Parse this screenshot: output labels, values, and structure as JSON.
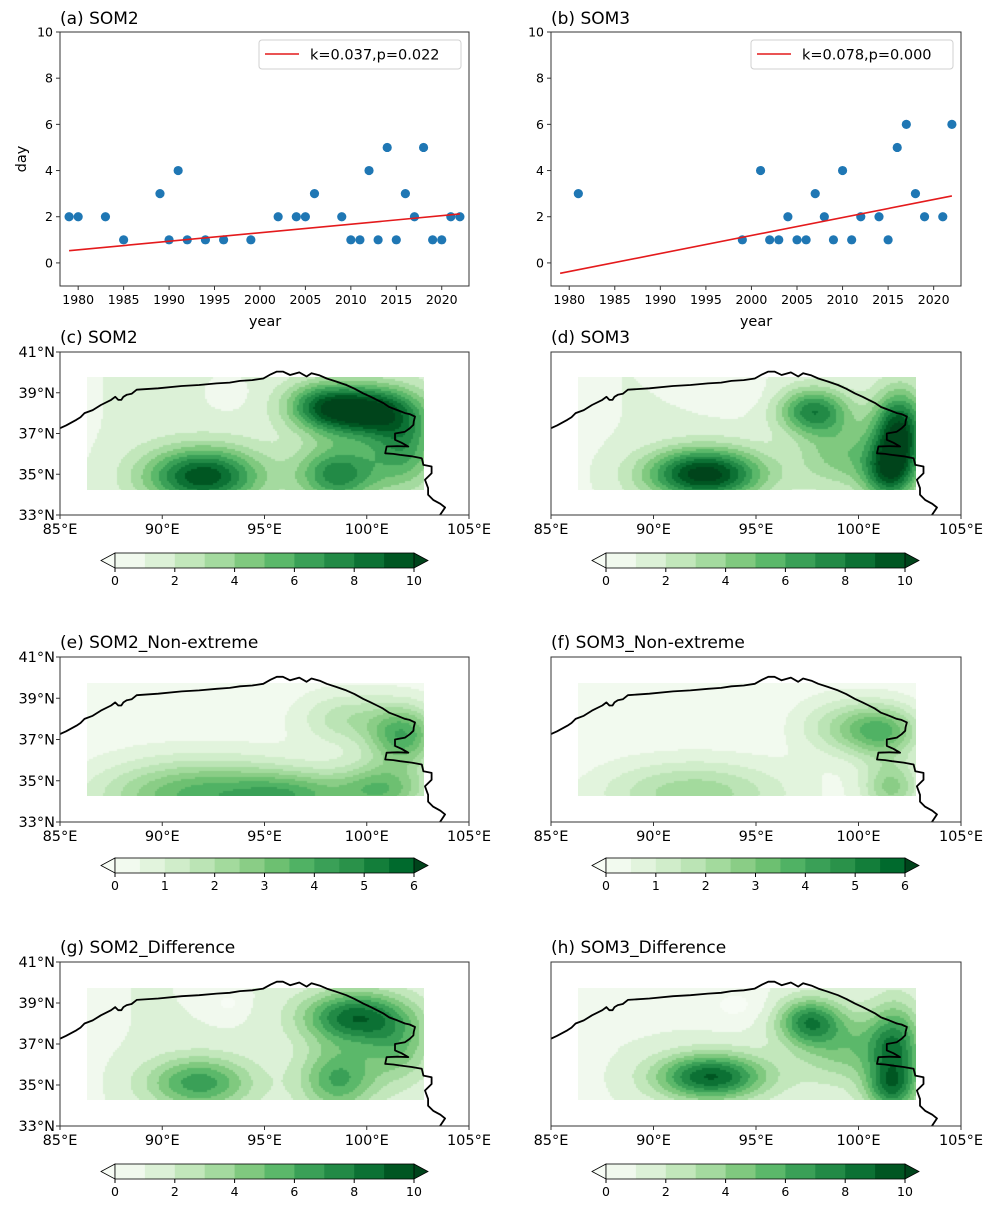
{
  "chart_data": [
    {
      "id": "a",
      "type": "scatter",
      "title": "(a) SOM2",
      "xlabel": "year",
      "ylabel": "day",
      "xlim": [
        1978,
        2023
      ],
      "ylim": [
        -1,
        10
      ],
      "xticks": [
        1980,
        1985,
        1990,
        1995,
        2000,
        2005,
        2010,
        2015,
        2020
      ],
      "yticks": [
        0,
        2,
        4,
        6,
        8,
        10
      ],
      "grid": false,
      "marker_color": "#1f77b4",
      "points": {
        "x": [
          1979,
          1980,
          1983,
          1985,
          1989,
          1990,
          1991,
          1992,
          1994,
          1996,
          1999,
          2002,
          2004,
          2005,
          2006,
          2009,
          2010,
          2011,
          2012,
          2013,
          2014,
          2015,
          2016,
          2017,
          2018,
          2019,
          2020,
          2021,
          2022
        ],
        "y": [
          2,
          2,
          2,
          1,
          3,
          1,
          4,
          1,
          1,
          1,
          1,
          2,
          2,
          2,
          3,
          2,
          1,
          1,
          4,
          1,
          5,
          1,
          3,
          2,
          5,
          1,
          1,
          2,
          2
        ]
      },
      "trend": {
        "label": "k=0.037,p=0.022",
        "color": "#e41a1c",
        "x": [
          1979,
          2022
        ],
        "y": [
          0.53,
          2.12
        ]
      },
      "legend_position": "top-right"
    },
    {
      "id": "b",
      "type": "scatter",
      "title": "(b) SOM3",
      "xlabel": "year",
      "ylabel": "",
      "xlim": [
        1978,
        2023
      ],
      "ylim": [
        -1,
        10
      ],
      "xticks": [
        1980,
        1985,
        1990,
        1995,
        2000,
        2005,
        2010,
        2015,
        2020
      ],
      "yticks": [
        0,
        2,
        4,
        6,
        8,
        10
      ],
      "grid": false,
      "marker_color": "#1f77b4",
      "points": {
        "x": [
          1981,
          1999,
          2001,
          2002,
          2003,
          2004,
          2005,
          2006,
          2007,
          2008,
          2009,
          2010,
          2011,
          2012,
          2014,
          2015,
          2016,
          2017,
          2018,
          2019,
          2021,
          2022
        ],
        "y": [
          3,
          1,
          4,
          1,
          1,
          2,
          1,
          1,
          3,
          2,
          1,
          4,
          1,
          2,
          2,
          1,
          5,
          6,
          3,
          2,
          2,
          6
        ]
      },
      "trend": {
        "label": "k=0.078,p=0.000",
        "color": "#e41a1c",
        "x": [
          1979,
          2022
        ],
        "y": [
          -0.45,
          2.9
        ]
      },
      "legend_position": "top-right"
    },
    {
      "id": "c",
      "type": "heatmap",
      "title": "(c) SOM2",
      "colorbar": "cb10",
      "blobs": [
        [
          99.8,
          38.1,
          9.5,
          1.8,
          0.9
        ],
        [
          92.0,
          34.9,
          8.6,
          2.0,
          1.0
        ],
        [
          98.6,
          35.0,
          6.5,
          1.4,
          1.0
        ],
        [
          101.8,
          36.3,
          5.0,
          1.2,
          1.4
        ],
        [
          97.6,
          38.4,
          4.0,
          1.2,
          0.8
        ]
      ],
      "base": 1.2,
      "cold_spots": [
        [
          93.2,
          39.0,
          1.2,
          0.6,
          0.5
        ]
      ]
    },
    {
      "id": "d",
      "type": "heatmap",
      "title": "(d) SOM3",
      "colorbar": "cb10",
      "blobs": [
        [
          92.5,
          35.0,
          9.8,
          2.0,
          0.9
        ],
        [
          102.0,
          37.1,
          9.0,
          0.9,
          1.4
        ],
        [
          97.8,
          38.1,
          6.5,
          1.2,
          0.8
        ],
        [
          101.5,
          35.0,
          6.5,
          0.9,
          1.0
        ],
        [
          99.2,
          36.0,
          3.5,
          1.5,
          1.2
        ]
      ],
      "base": 1.0,
      "cold_spots": [
        [
          94.0,
          39.0,
          1.0,
          1.0,
          0.6
        ]
      ]
    },
    {
      "id": "e",
      "type": "heatmap",
      "title": "(e) SOM2_Non-extreme",
      "colorbar": "cb6",
      "blobs": [
        [
          92.0,
          34.3,
          3.5,
          3.5,
          1.2
        ],
        [
          101.8,
          37.2,
          3.6,
          1.2,
          1.0
        ],
        [
          100.8,
          34.6,
          3.0,
          1.6,
          0.9
        ],
        [
          99.0,
          38.0,
          1.6,
          1.6,
          0.9
        ],
        [
          96.5,
          34.3,
          2.2,
          2.0,
          0.8
        ]
      ],
      "base": 0.2,
      "cold_spots": []
    },
    {
      "id": "f",
      "type": "heatmap",
      "title": "(f) SOM3_Non-extreme",
      "colorbar": "cb6",
      "blobs": [
        [
          101.2,
          37.4,
          3.2,
          1.3,
          0.9
        ],
        [
          92.0,
          34.4,
          2.2,
          3.2,
          1.1
        ],
        [
          101.6,
          34.7,
          2.5,
          1.0,
          0.9
        ],
        [
          99.0,
          37.6,
          1.5,
          1.5,
          1.0
        ]
      ],
      "base": 0.15,
      "cold_spots": []
    },
    {
      "id": "g",
      "type": "heatmap",
      "title": "(g) SOM2_Difference",
      "colorbar": "cb10",
      "blobs": [
        [
          99.4,
          38.3,
          7.6,
          1.8,
          0.9
        ],
        [
          91.8,
          35.1,
          5.6,
          1.8,
          0.9
        ],
        [
          98.6,
          35.3,
          5.2,
          1.3,
          1.1
        ],
        [
          101.5,
          36.8,
          3.5,
          1.2,
          1.2
        ]
      ],
      "base": 1.0,
      "cold_spots": [
        [
          93.2,
          39.0,
          1.2,
          0.6,
          0.5
        ]
      ]
    },
    {
      "id": "h",
      "type": "heatmap",
      "title": "(h) SOM3_Difference",
      "colorbar": "cb10",
      "blobs": [
        [
          92.8,
          35.4,
          8.2,
          1.9,
          0.8
        ],
        [
          97.6,
          38.1,
          6.2,
          1.1,
          0.8
        ],
        [
          101.8,
          36.8,
          6.0,
          0.9,
          1.5
        ],
        [
          99.5,
          36.8,
          3.5,
          1.8,
          1.2
        ],
        [
          101.6,
          34.8,
          5.0,
          0.9,
          0.8
        ]
      ],
      "base": 0.9,
      "cold_spots": [
        [
          94.0,
          38.9,
          1.2,
          1.0,
          0.6
        ]
      ]
    }
  ],
  "map": {
    "lon_range": [
      85,
      105
    ],
    "lat_range": [
      33,
      41
    ],
    "data_extent": {
      "lon": [
        86.3,
        102.8
      ],
      "lat": [
        34.25,
        39.75
      ]
    },
    "xticks": [
      85,
      90,
      95,
      100,
      105
    ],
    "xtick_labels": [
      "85°E",
      "90°E",
      "95°E",
      "100°E",
      "105°E"
    ],
    "yticks": [
      33,
      35,
      37,
      39,
      41
    ],
    "ytick_labels": [
      "33°N",
      "35°N",
      "37°N",
      "39°N",
      "41°N"
    ],
    "border": [
      [
        85.0,
        37.26
      ],
      [
        85.3,
        37.4
      ],
      [
        85.8,
        37.67
      ],
      [
        86.0,
        37.8
      ],
      [
        86.2,
        38.0
      ],
      [
        86.6,
        38.15
      ],
      [
        87.0,
        38.4
      ],
      [
        87.5,
        38.65
      ],
      [
        87.7,
        38.8
      ],
      [
        87.85,
        38.65
      ],
      [
        88.0,
        38.65
      ],
      [
        88.1,
        38.8
      ],
      [
        88.26,
        38.9
      ],
      [
        88.5,
        38.95
      ],
      [
        88.75,
        39.15
      ],
      [
        89.8,
        39.22
      ],
      [
        90.95,
        39.33
      ],
      [
        91.8,
        39.38
      ],
      [
        92.66,
        39.46
      ],
      [
        93.3,
        39.5
      ],
      [
        93.8,
        39.58
      ],
      [
        94.4,
        39.62
      ],
      [
        94.94,
        39.7
      ],
      [
        95.3,
        39.9
      ],
      [
        95.6,
        40.04
      ],
      [
        95.9,
        40.04
      ],
      [
        96.25,
        39.87
      ],
      [
        96.7,
        40.0
      ],
      [
        97.06,
        39.8
      ],
      [
        97.3,
        39.96
      ],
      [
        97.7,
        39.85
      ],
      [
        98.04,
        39.7
      ],
      [
        98.5,
        39.55
      ],
      [
        99.0,
        39.38
      ],
      [
        99.4,
        39.2
      ],
      [
        99.83,
        38.97
      ],
      [
        100.2,
        38.8
      ],
      [
        100.5,
        38.65
      ],
      [
        100.8,
        38.5
      ],
      [
        101.1,
        38.3
      ],
      [
        101.5,
        38.15
      ],
      [
        101.87,
        38.0
      ],
      [
        102.1,
        37.95
      ],
      [
        102.36,
        37.83
      ],
      [
        102.3,
        37.6
      ],
      [
        102.28,
        37.42
      ],
      [
        102.1,
        37.25
      ],
      [
        101.87,
        37.09
      ],
      [
        101.38,
        37.0
      ],
      [
        101.38,
        36.69
      ],
      [
        101.7,
        36.55
      ],
      [
        102.03,
        36.36
      ],
      [
        101.5,
        36.38
      ],
      [
        100.97,
        36.36
      ],
      [
        100.9,
        36.03
      ],
      [
        101.3,
        36.0
      ],
      [
        101.63,
        35.95
      ],
      [
        102.2,
        35.88
      ],
      [
        102.69,
        35.79
      ],
      [
        102.77,
        35.46
      ],
      [
        103.17,
        35.38
      ],
      [
        103.17,
        35.05
      ],
      [
        102.85,
        34.73
      ],
      [
        103.0,
        34.32
      ],
      [
        103.0,
        33.99
      ],
      [
        103.25,
        33.74
      ],
      [
        103.6,
        33.55
      ],
      [
        103.83,
        33.37
      ],
      [
        103.58,
        33.0
      ]
    ]
  },
  "colorbars": {
    "cb10": {
      "levels": [
        0,
        1,
        2,
        3,
        4,
        5,
        6,
        7,
        8,
        9,
        10
      ],
      "tick_values": [
        0,
        2,
        4,
        6,
        8,
        10
      ],
      "tick_labels": [
        "0",
        "2",
        "4",
        "6",
        "8",
        "10"
      ],
      "under_color": "#f7fcf5",
      "over_color": "#00441b",
      "colors": [
        "#f1f9ee",
        "#dcf1d7",
        "#c2e7bb",
        "#a4da9f",
        "#80c97f",
        "#5bb86a",
        "#3aa057",
        "#228a46",
        "#0c7134",
        "#005622"
      ]
    },
    "cb6": {
      "levels": [
        0,
        0.5,
        1,
        1.5,
        2,
        2.5,
        3,
        3.5,
        4,
        4.5,
        5,
        5.5,
        6
      ],
      "tick_values": [
        0,
        1,
        2,
        3,
        4,
        5,
        6
      ],
      "tick_labels": [
        "0",
        "1",
        "2",
        "3",
        "4",
        "5",
        "6"
      ],
      "under_color": "#f7fcf5",
      "over_color": "#00441b",
      "colors": [
        "#f2faef",
        "#e2f4dd",
        "#d0edca",
        "#bbe4b5",
        "#a3da9d",
        "#8acd86",
        "#6dc071",
        "#50b264",
        "#3aa057",
        "#2a924a",
        "#137e3a",
        "#006a2d"
      ]
    }
  }
}
